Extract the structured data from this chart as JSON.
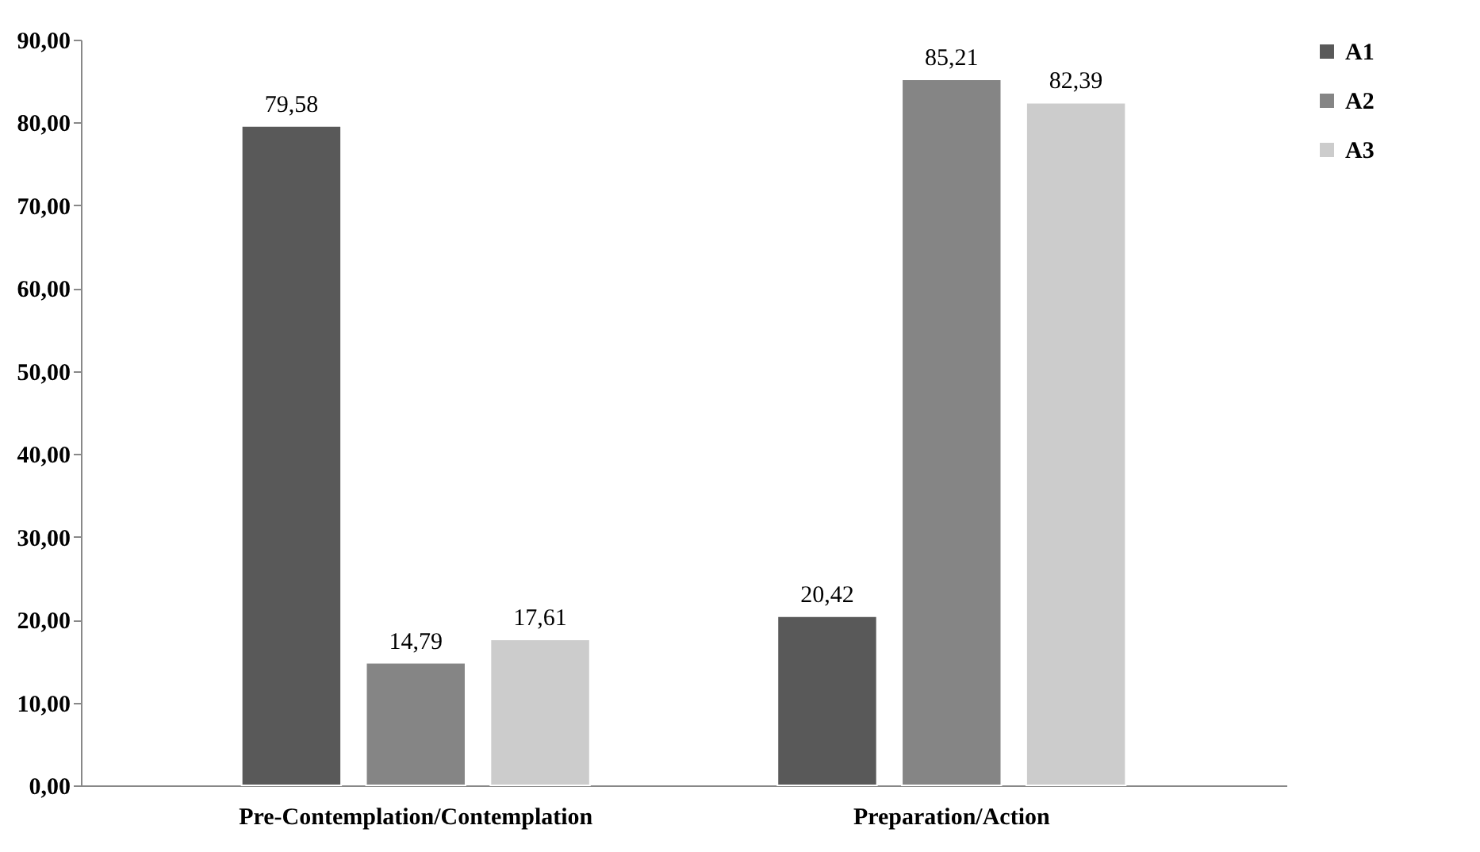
{
  "chart_data": {
    "type": "bar",
    "categories": [
      "Pre-Contemplation/Contemplation",
      "Preparation/Action"
    ],
    "series": [
      {
        "name": "A1",
        "color": "#595959",
        "values": [
          79.58,
          20.42
        ],
        "value_labels": [
          "79,58",
          "20,42"
        ]
      },
      {
        "name": "A2",
        "color": "#858585",
        "values": [
          14.79,
          85.21
        ],
        "value_labels": [
          "14,79",
          "85,21"
        ]
      },
      {
        "name": "A3",
        "color": "#cccccc",
        "values": [
          17.61,
          82.39
        ],
        "value_labels": [
          "17,61",
          "82,39"
        ]
      }
    ],
    "ylim": [
      0,
      90
    ],
    "yticks": [
      {
        "value": 0,
        "label": "0,00"
      },
      {
        "value": 10,
        "label": "10,00"
      },
      {
        "value": 20,
        "label": "20,00"
      },
      {
        "value": 30,
        "label": "30,00"
      },
      {
        "value": 40,
        "label": "40,00"
      },
      {
        "value": 50,
        "label": "50,00"
      },
      {
        "value": 60,
        "label": "60,00"
      },
      {
        "value": 70,
        "label": "70,00"
      },
      {
        "value": 80,
        "label": "80,00"
      },
      {
        "value": 90,
        "label": "90,00"
      }
    ],
    "grid": false,
    "legend": "right"
  }
}
